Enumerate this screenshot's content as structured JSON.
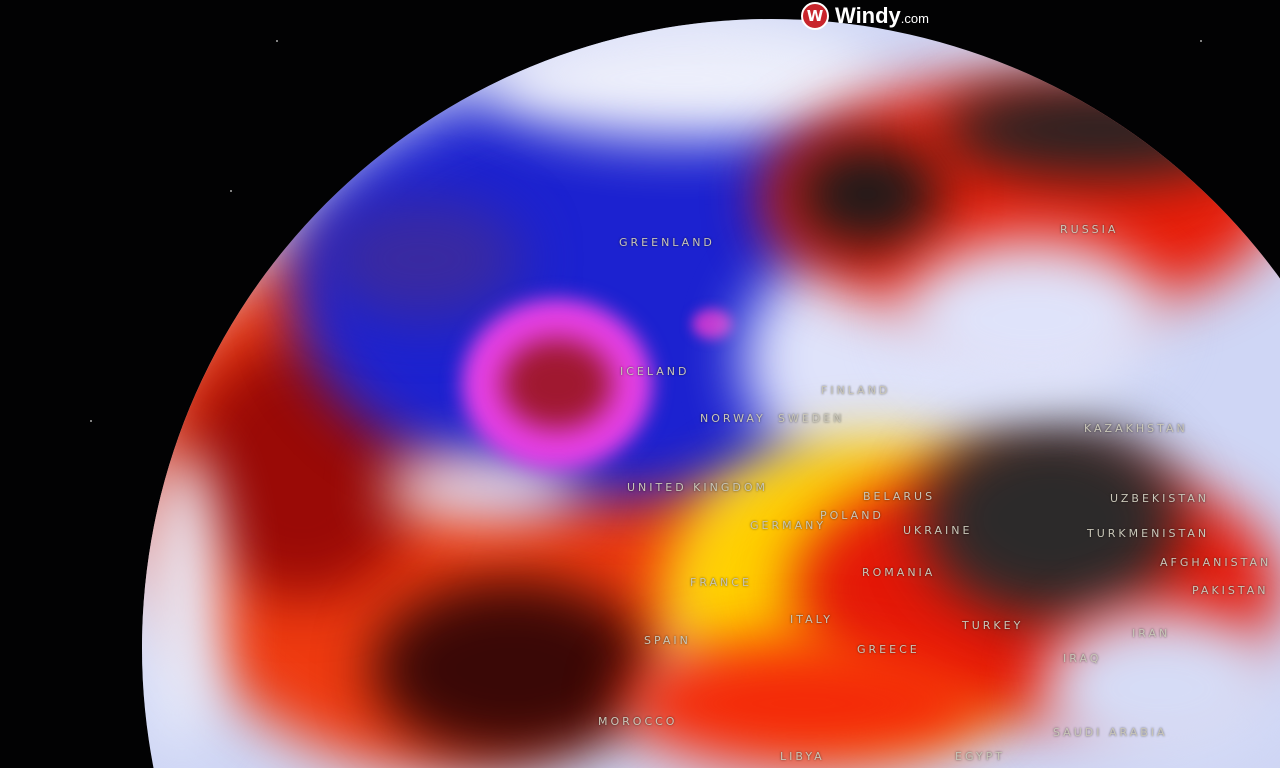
{
  "brand": {
    "name": "Windy",
    "suffix": ".com",
    "logo_icon": "windy-logo-icon",
    "accent": "#c8252c"
  },
  "map": {
    "view": "globe",
    "palette": {
      "cold": "#1a1fc8",
      "very_cold": "#e040e8",
      "neutral": "#e8ecfb",
      "warm": "#ffe000",
      "hot": "#e81808",
      "very_hot": "#2a2a2a"
    },
    "labels": {
      "greenland": "GREENLAND",
      "russia": "RUSSIA",
      "iceland": "ICELAND",
      "finland": "FINLAND",
      "norway": "NORWAY",
      "sweden": "SWEDEN",
      "united_kingdom": "UNITED KINGDOM",
      "belarus": "BELARUS",
      "poland": "POLAND",
      "germany": "GERMANY",
      "ukraine": "UKRAINE",
      "kazakhstan": "KAZAKHSTAN",
      "uzbekistan": "UZBEKISTAN",
      "turkmenistan": "TURKMENISTAN",
      "afghanistan": "AFGHANISTAN",
      "pakistan": "PAKISTAN",
      "france": "FRANCE",
      "romania": "ROMANIA",
      "spain": "SPAIN",
      "italy": "ITALY",
      "greece": "GREECE",
      "turkey": "TURKEY",
      "iran": "IRAN",
      "iraq": "IRAQ",
      "morocco": "MOROCCO",
      "saudi_arabia": "SAUDI ARABIA",
      "egypt": "EGYPT",
      "libya": "LIBYA"
    }
  }
}
